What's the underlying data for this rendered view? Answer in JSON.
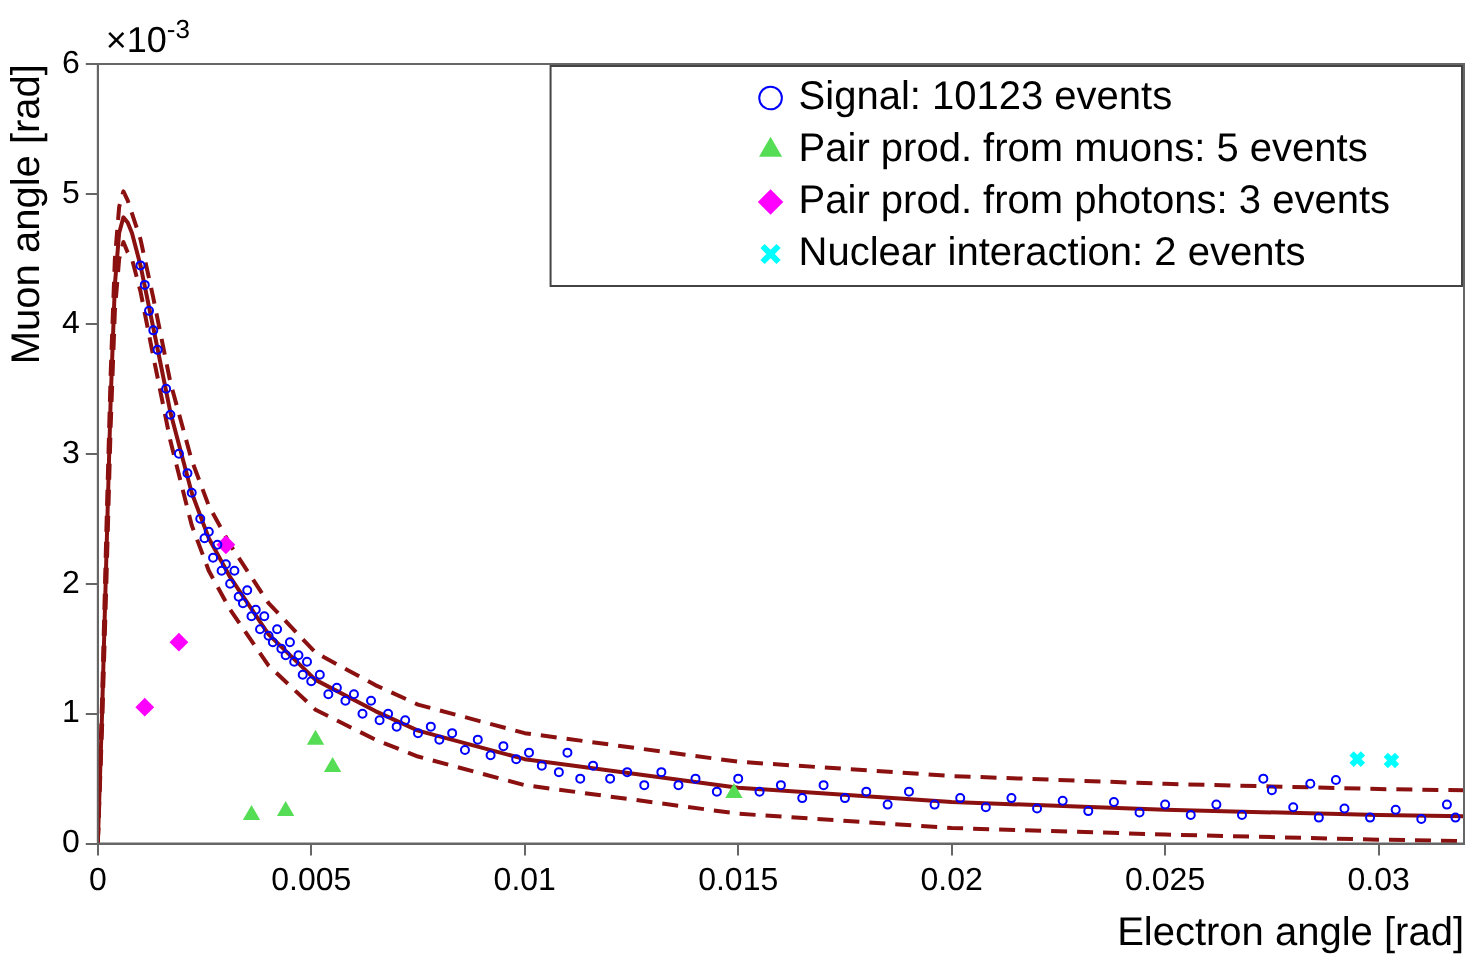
{
  "chart_data": {
    "type": "scatter",
    "xlabel": "Electron angle [rad]",
    "ylabel": "Muon angle [rad]",
    "annotations": [
      "×10$^{-3}$"
    ],
    "xlim": [
      0,
      0.032
    ],
    "xticks": [
      0,
      0.005,
      0.01,
      0.015,
      0.02,
      0.025,
      0.03
    ],
    "ylim": [
      0,
      6
    ],
    "yticks": [
      0,
      1,
      2,
      3,
      4,
      5,
      6
    ],
    "legend": "top right",
    "series": [
      {
        "type": "line",
        "color": "#8b1010",
        "marker": "none",
        "line_style": "solid",
        "x": [
          0,
          0.0001,
          0.0002,
          0.0003,
          0.0004,
          0.0005,
          0.0006,
          0.0007,
          0.0008,
          0.001,
          0.0013,
          0.0017,
          0.0022,
          0.0026,
          0.0031,
          0.004,
          0.0051,
          0.0065,
          0.0075,
          0.01,
          0.015,
          0.02,
          0.025,
          0.03,
          0.032
        ],
        "values": [
          0,
          1.0,
          2.2,
          3.4,
          4.3,
          4.7,
          4.82,
          4.78,
          4.7,
          4.45,
          3.97,
          3.32,
          2.7,
          2.35,
          2.05,
          1.61,
          1.26,
          1.02,
          0.87,
          0.65,
          0.43,
          0.32,
          0.26,
          0.22,
          0.21
        ]
      },
      {
        "type": "line",
        "color": "#8b1010",
        "marker": "none",
        "line_style": "dashed",
        "x": [
          0,
          0.0001,
          0.0002,
          0.0003,
          0.0004,
          0.0005,
          0.0006,
          0.0007,
          0.0008,
          0.001,
          0.0013,
          0.0017,
          0.0022,
          0.0026,
          0.0031,
          0.004,
          0.0051,
          0.0065,
          0.0075,
          0.01,
          0.015,
          0.02,
          0.025,
          0.03,
          0.032
        ],
        "values": [
          0,
          1.1,
          2.4,
          3.6,
          4.5,
          4.9,
          5.02,
          4.95,
          4.85,
          4.65,
          4.2,
          3.55,
          2.95,
          2.6,
          2.3,
          1.85,
          1.47,
          1.22,
          1.07,
          0.85,
          0.63,
          0.52,
          0.46,
          0.42,
          0.41
        ]
      },
      {
        "type": "line",
        "color": "#8b1010",
        "marker": "none",
        "line_style": "dashed",
        "x": [
          0,
          0.0001,
          0.0002,
          0.0003,
          0.0004,
          0.0005,
          0.0006,
          0.0007,
          0.0008,
          0.001,
          0.0013,
          0.0017,
          0.0022,
          0.0026,
          0.0031,
          0.004,
          0.0051,
          0.0065,
          0.0075,
          0.01,
          0.015,
          0.02,
          0.025,
          0.03,
          0.032
        ],
        "values": [
          0,
          0.9,
          2.0,
          3.2,
          4.1,
          4.5,
          4.63,
          4.55,
          4.5,
          4.25,
          3.75,
          3.1,
          2.45,
          2.1,
          1.8,
          1.37,
          1.03,
          0.8,
          0.67,
          0.45,
          0.23,
          0.12,
          0.07,
          0.03,
          0.02
        ]
      },
      {
        "name": "Signal: 10123 events",
        "color": "#0000ff",
        "marker": "circle",
        "x": [
          0.001,
          0.0011,
          0.0012,
          0.0013,
          0.0014,
          0.0016,
          0.0017,
          0.0019,
          0.0021,
          0.0022,
          0.0024,
          0.0025,
          0.0026,
          0.0027,
          0.0028,
          0.0029,
          0.003,
          0.0031,
          0.0032,
          0.0033,
          0.0034,
          0.0035,
          0.0036,
          0.0037,
          0.0038,
          0.0039,
          0.004,
          0.0041,
          0.0042,
          0.0043,
          0.0044,
          0.0045,
          0.0046,
          0.0047,
          0.0048,
          0.0049,
          0.005,
          0.0052,
          0.0054,
          0.0056,
          0.0058,
          0.006,
          0.0062,
          0.0064,
          0.0066,
          0.0068,
          0.007,
          0.0072,
          0.0075,
          0.0078,
          0.008,
          0.0083,
          0.0086,
          0.0089,
          0.0092,
          0.0095,
          0.0098,
          0.0101,
          0.0104,
          0.0108,
          0.011,
          0.0113,
          0.0116,
          0.012,
          0.0124,
          0.0128,
          0.0132,
          0.0136,
          0.014,
          0.0145,
          0.015,
          0.0155,
          0.016,
          0.0165,
          0.017,
          0.0175,
          0.018,
          0.0185,
          0.019,
          0.0196,
          0.0202,
          0.0208,
          0.0214,
          0.022,
          0.0226,
          0.0232,
          0.0238,
          0.0244,
          0.025,
          0.0256,
          0.0262,
          0.0268,
          0.0273,
          0.0275,
          0.028,
          0.0284,
          0.0286,
          0.029,
          0.0292,
          0.0298,
          0.0304,
          0.031,
          0.0316,
          0.0318
        ],
        "values": [
          4.45,
          4.3,
          4.1,
          3.95,
          3.8,
          3.5,
          3.3,
          3.0,
          2.85,
          2.7,
          2.5,
          2.35,
          2.4,
          2.2,
          2.3,
          2.1,
          2.15,
          2.0,
          2.1,
          1.9,
          1.85,
          1.95,
          1.75,
          1.8,
          1.65,
          1.75,
          1.6,
          1.55,
          1.65,
          1.5,
          1.45,
          1.55,
          1.4,
          1.45,
          1.3,
          1.4,
          1.25,
          1.3,
          1.15,
          1.2,
          1.1,
          1.15,
          1.0,
          1.1,
          0.95,
          1.0,
          0.9,
          0.95,
          0.85,
          0.9,
          0.8,
          0.85,
          0.72,
          0.8,
          0.68,
          0.75,
          0.65,
          0.7,
          0.6,
          0.55,
          0.7,
          0.5,
          0.6,
          0.5,
          0.55,
          0.45,
          0.55,
          0.45,
          0.5,
          0.4,
          0.5,
          0.4,
          0.45,
          0.35,
          0.45,
          0.35,
          0.4,
          0.3,
          0.4,
          0.3,
          0.35,
          0.28,
          0.35,
          0.27,
          0.33,
          0.25,
          0.32,
          0.24,
          0.3,
          0.22,
          0.3,
          0.22,
          0.5,
          0.41,
          0.28,
          0.46,
          0.2,
          0.49,
          0.27,
          0.2,
          0.26,
          0.19,
          0.3,
          0.2
        ]
      },
      {
        "name": "Pair prod. from muons: 5 events",
        "color": "#55dd55",
        "marker": "triangle",
        "x": [
          0.0036,
          0.0044,
          0.0051,
          0.0055,
          0.0149
        ],
        "values": [
          0.22,
          0.25,
          0.8,
          0.59,
          0.39
        ]
      },
      {
        "name": "Pair prod. from photons: 3 events",
        "color": "#ff00ff",
        "marker": "diamond",
        "x": [
          0.0011,
          0.0019,
          0.003
        ],
        "values": [
          1.05,
          1.55,
          2.3
        ]
      },
      {
        "name": "Nuclear interaction: 2 events",
        "color": "#00ffff",
        "marker": "cross",
        "x": [
          0.0295,
          0.0303
        ],
        "values": [
          0.65,
          0.64
        ]
      }
    ]
  }
}
